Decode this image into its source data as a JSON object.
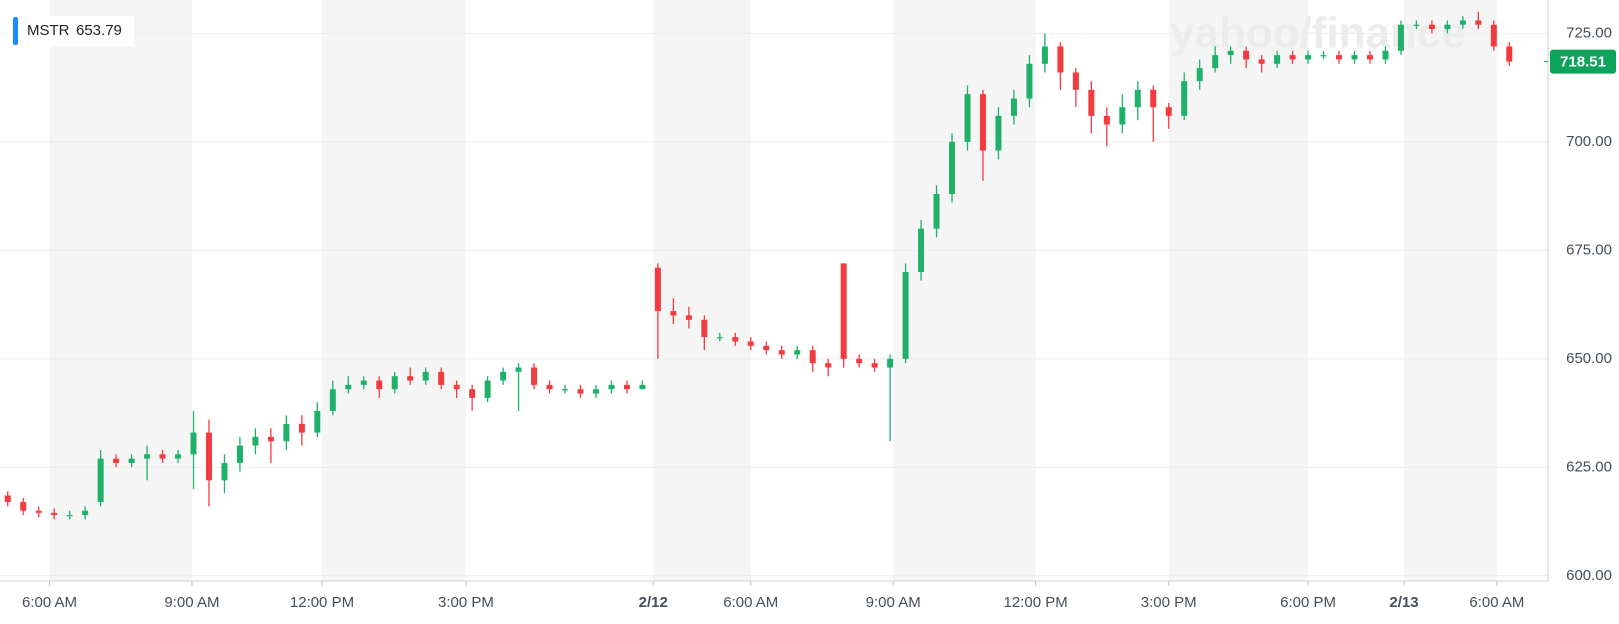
{
  "chart_data": {
    "type": "candlestick",
    "symbol": "MSTR",
    "previous_close": 653.79,
    "last_price": 718.51,
    "watermark": "yahoo/finance",
    "up_color": "#1fb16a",
    "down_color": "#f23b41",
    "last_price_color": "#0da35a",
    "grid": true,
    "categories": [
      null,
      null,
      null,
      null,
      null,
      null,
      null,
      null,
      null,
      null,
      null,
      null,
      null,
      null,
      null,
      null,
      null,
      null,
      null,
      null,
      null,
      null,
      null,
      null,
      null,
      null,
      null,
      null,
      null,
      null,
      null,
      null,
      null,
      null,
      null,
      null,
      null,
      null,
      null,
      null,
      null,
      null,
      null,
      null,
      null,
      null,
      null,
      null,
      null,
      null,
      null,
      null,
      null,
      null,
      null,
      null,
      null,
      null,
      null,
      null,
      null,
      null,
      null,
      null,
      null,
      null,
      null,
      null,
      null,
      null,
      null,
      null,
      null,
      null,
      null,
      null,
      null,
      null,
      null,
      null,
      null,
      null,
      null,
      null,
      null,
      null,
      null,
      null,
      null,
      null,
      null,
      null,
      null,
      null,
      null,
      null,
      null,
      null
    ],
    "open": [
      618.5,
      617,
      615,
      614.5,
      614,
      614,
      617,
      627,
      626,
      627,
      628,
      627,
      628,
      633,
      622,
      626,
      630,
      632,
      631,
      635,
      633,
      638,
      643,
      644,
      645,
      643,
      646,
      645,
      647,
      644,
      643,
      641,
      645,
      647,
      648,
      644,
      643,
      643,
      642,
      643,
      644,
      643,
      671,
      661,
      660,
      659,
      655,
      655,
      654,
      653,
      652,
      651,
      652,
      649,
      672,
      650,
      649,
      648,
      650,
      670,
      680,
      688,
      700,
      711,
      698,
      706,
      710,
      718,
      722,
      716,
      712,
      706,
      704,
      708,
      712,
      708,
      706,
      714,
      717,
      720,
      721,
      719,
      718,
      720,
      719,
      720,
      720,
      719,
      720,
      719,
      721,
      727,
      727,
      726,
      727,
      728,
      727,
      722
    ],
    "high": [
      619.5,
      618,
      616,
      615.5,
      615,
      616,
      629,
      628,
      628,
      630,
      629,
      629,
      638,
      636,
      628,
      632,
      634,
      634,
      637,
      637,
      640,
      645,
      646,
      646,
      646,
      647,
      648,
      648,
      648,
      645,
      644,
      646,
      648,
      649,
      649,
      645,
      644,
      644,
      644,
      645,
      645,
      645,
      672,
      664,
      662,
      660,
      656,
      656,
      655,
      654,
      653,
      653,
      653,
      650,
      672,
      651,
      650,
      651,
      672,
      682,
      690,
      702,
      713,
      712,
      708,
      712,
      720,
      725,
      723,
      717,
      714,
      708,
      711,
      714,
      713,
      709,
      716,
      719,
      722,
      722,
      722,
      720,
      721,
      721,
      721,
      721,
      721,
      721,
      721,
      722,
      728,
      728,
      728,
      728,
      729,
      730,
      728,
      723
    ],
    "low": [
      616,
      614,
      613.5,
      613,
      613,
      613,
      616,
      625,
      625,
      622,
      626,
      626,
      620,
      616,
      619,
      624,
      628,
      626,
      629,
      630,
      632,
      637,
      642,
      643,
      641,
      642,
      644,
      644,
      643,
      641,
      638,
      640,
      644,
      638,
      643,
      642,
      642,
      641,
      641,
      642,
      642,
      643,
      650,
      658,
      657,
      652,
      654,
      653,
      652,
      651,
      650,
      650,
      647,
      646,
      648,
      648,
      647,
      631,
      649,
      668,
      678,
      686,
      698,
      691,
      696,
      704,
      708,
      716,
      712,
      708,
      702,
      699,
      702,
      705,
      700,
      703,
      705,
      712,
      716,
      718,
      717,
      716,
      717,
      718,
      718,
      719,
      718,
      718,
      718,
      718,
      720,
      726,
      725,
      725,
      726,
      726,
      721,
      717.5
    ],
    "close": [
      617,
      615,
      614.5,
      614,
      614,
      615,
      627,
      626,
      627,
      628,
      627,
      628,
      633,
      622,
      626,
      630,
      632,
      631,
      635,
      633,
      638,
      643,
      644,
      645,
      643,
      646,
      645,
      647,
      644,
      643,
      641,
      645,
      647,
      648,
      644,
      643,
      643,
      642,
      643,
      644,
      643,
      644,
      661,
      660,
      659,
      655,
      655,
      654,
      653,
      652,
      651,
      652,
      649,
      648,
      650,
      649,
      648,
      650,
      670,
      680,
      688,
      700,
      711,
      698,
      706,
      710,
      718,
      722,
      716,
      712,
      706,
      704,
      708,
      712,
      708,
      706,
      714,
      717,
      720,
      721,
      719,
      718,
      720,
      719,
      720,
      720,
      719,
      720,
      719,
      721,
      727,
      727,
      726,
      727,
      728,
      727,
      722,
      718.5
    ],
    "ylim": [
      598.8,
      732.7
    ],
    "yticks": [
      {
        "value": 600,
        "label": "600.00"
      },
      {
        "value": 625,
        "label": "625.00"
      },
      {
        "value": 650,
        "label": "650.00"
      },
      {
        "value": 675,
        "label": "675.00"
      },
      {
        "value": 700,
        "label": "700.00"
      },
      {
        "value": 725,
        "label": "725.00"
      }
    ],
    "xlim": [
      -0.5,
      99.5
    ],
    "xticks": [
      {
        "value": 2.7,
        "label": "6:00 AM"
      },
      {
        "value": 11.9,
        "label": "9:00 AM"
      },
      {
        "value": 20.3,
        "label": "12:00 PM"
      },
      {
        "value": 29.6,
        "label": "3:00 PM"
      },
      {
        "value": 41.7,
        "label": "2/12"
      },
      {
        "value": 48,
        "label": "6:00 AM"
      },
      {
        "value": 57.2,
        "label": "9:00 AM"
      },
      {
        "value": 66.4,
        "label": "12:00 PM"
      },
      {
        "value": 75,
        "label": "3:00 PM"
      },
      {
        "value": 84,
        "label": "6:00 PM"
      },
      {
        "value": 90.2,
        "label": "2/13"
      },
      {
        "value": 96.2,
        "label": "6:00 AM"
      }
    ]
  }
}
